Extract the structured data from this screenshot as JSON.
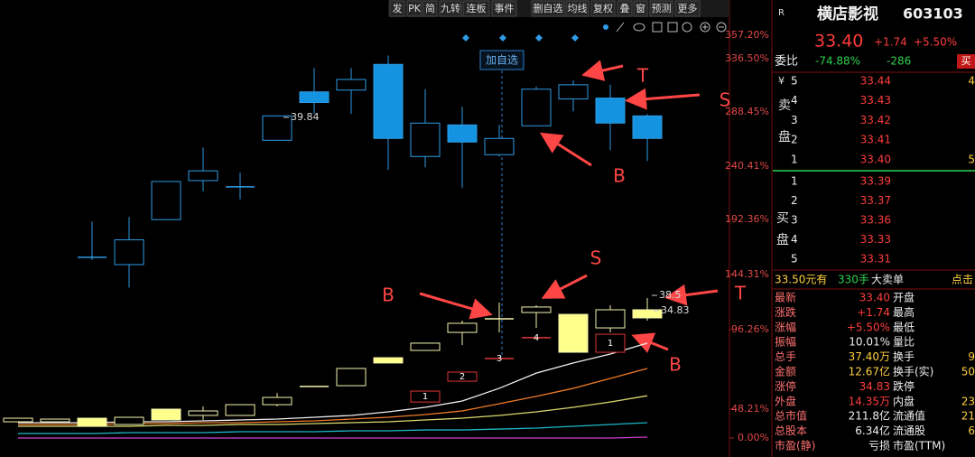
{
  "toolbar": {
    "buttons": [
      "发",
      "PK",
      "简",
      "九转",
      "连板",
      "事件",
      "删自选",
      "均线",
      "复权",
      "叠",
      "窗",
      "预测",
      "更多"
    ]
  },
  "chart": {
    "type": "candlestick",
    "yticks": [
      {
        "value": 0,
        "label": "0.00%"
      },
      {
        "value": 48.21,
        "label": "48.21%"
      },
      {
        "value": 96.26,
        "label": "96.26%"
      },
      {
        "value": 144.31,
        "label": "144.31%"
      },
      {
        "value": 192.36,
        "label": "192.36%"
      },
      {
        "value": 240.41,
        "label": "240.41%"
      },
      {
        "value": 288.45,
        "label": "288.45%"
      },
      {
        "value": 336.5,
        "label": "336.50%"
      },
      {
        "value": 357.2,
        "label": "357.20%"
      }
    ],
    "upper": {
      "color": "#2f9be6",
      "fill": "#1493e0",
      "open": [
        null,
        null,
        159.4,
        153,
        192.2,
        227.4,
        221.8,
        263.4,
        306.6,
        308.2,
        331.4,
        249,
        277,
        250.6,
        276.2,
        300.2,
        301,
        285
      ],
      "close": [
        null,
        null,
        159.4,
        174.6,
        226.6,
        236.2,
        221.8,
        285,
        297,
        317.8,
        265,
        278.6,
        261.8,
        265,
        309,
        313,
        278.6,
        265
      ],
      "high": [
        null,
        null,
        190.6,
        194.6,
        226.6,
        257,
        234.6,
        285,
        328.2,
        328.2,
        339.4,
        309,
        293,
        277,
        311.4,
        317,
        313,
        286.6
      ],
      "low": [
        null,
        null,
        157,
        133,
        192.2,
        217.8,
        210.6,
        263.4,
        286.6,
        286.6,
        237,
        239.4,
        221,
        249,
        276.2,
        289,
        254.6,
        245
      ]
    },
    "lower": {
      "color": "#f4f4b0",
      "fill": "#ffff8c",
      "open": [
        27.1,
        27.1,
        33.1,
        22.6,
        48.21,
        37.7,
        37.7,
        50.9,
        61.9,
        62.4,
        79.3,
        83.7,
        94.6,
        105.7,
        111.2,
        109.6,
        97.8,
        113.6
      ],
      "close": [
        33.1,
        31.6,
        19.6,
        34.6,
        30.1,
        45.2,
        50.9,
        55.3,
        61.9,
        72.8,
        76.1,
        88.1,
        101.8,
        105.7,
        116.0,
        82.6,
        113.6,
        106.5
      ],
      "high": [
        33.1,
        31.6,
        33.1,
        34.6,
        48.21,
        49.9,
        50.9,
        58.0,
        61.9,
        72.8,
        79.3,
        88.1,
        104.1,
        119.9,
        117.5,
        109.6,
        117.5,
        123.8
      ],
      "low": [
        27.1,
        27.1,
        19.6,
        22.6,
        30.1,
        30.1,
        37.7,
        49.9,
        61.9,
        62.4,
        76.1,
        83.7,
        87.0,
        94.6,
        97.8,
        82.6,
        94.6,
        104.1
      ]
    },
    "red": {
      "color": "#e03434",
      "open": [
        null,
        null,
        null,
        null,
        null,
        null,
        null,
        null,
        null,
        null,
        null,
        52.5,
        65.1,
        78.8,
        91.4,
        null,
        82.6,
        null
      ],
      "close": [
        null,
        null,
        null,
        null,
        null,
        null,
        null,
        null,
        null,
        null,
        null,
        59.1,
        70.6,
        78.8,
        91.4,
        null,
        93.5,
        null
      ],
      "labels": [
        null,
        null,
        null,
        null,
        null,
        null,
        null,
        null,
        null,
        null,
        null,
        "1",
        "2",
        "3",
        "4",
        null,
        "1",
        null
      ]
    },
    "lines": [
      {
        "color": "#f0f0f0",
        "values": [
          25.6,
          25.6,
          25.6,
          27.1,
          27.1,
          28.6,
          30.1,
          31.6,
          34.6,
          37.7,
          43.7,
          49.3,
          53.1,
          60.8,
          70.0,
          76.1,
          81.5,
          88.1
        ]
      },
      {
        "color": "#f07a28",
        "values": [
          22.6,
          22.6,
          22.6,
          24.1,
          24.1,
          25.6,
          25.6,
          27.1,
          28.6,
          31.6,
          34.6,
          39.2,
          45.2,
          51.5,
          55.9,
          60.8,
          66.8,
          72.8
        ]
      },
      {
        "color": "#d8d870",
        "values": [
          19.6,
          19.6,
          19.6,
          19.6,
          21.1,
          21.1,
          22.6,
          22.6,
          24.1,
          25.6,
          27.1,
          30.1,
          33.1,
          37.7,
          43.7,
          49.3,
          52.5,
          56.3
        ]
      },
      {
        "color": "#1cb8c8",
        "values": [
          7.5,
          7.5,
          7.5,
          9.0,
          9.0,
          9.0,
          10.5,
          10.5,
          10.5,
          12.0,
          12.0,
          13.5,
          13.5,
          15.0,
          16.6,
          19.6,
          22.6,
          25.6
        ]
      },
      {
        "color": "#d040d0",
        "values": [
          0,
          0,
          0,
          0,
          0,
          0,
          0,
          0,
          0,
          0,
          0,
          0,
          0,
          0,
          0,
          0,
          0,
          1.5
        ]
      }
    ],
    "price_labels": [
      "39.84",
      "38.5",
      "34.83"
    ],
    "crosshair_label": "加自选",
    "annotations": [
      "T",
      "S",
      "B",
      "B",
      "S",
      "T",
      "B"
    ]
  },
  "quote": {
    "flag": "R",
    "name": "横店影视",
    "code": "603103",
    "price": "33.40",
    "change": "+1.74",
    "change_pct": "+5.50%",
    "weibi_label": "委比",
    "weibi": "-74.88%",
    "weicha": "-286",
    "buy_button": "买"
  },
  "order_book": {
    "currency": "¥",
    "sell_label": [
      "卖",
      "盘"
    ],
    "buy_label": [
      "买",
      "盘"
    ],
    "sell": [
      {
        "level": "5",
        "price": "33.44",
        "extra": "4"
      },
      {
        "level": "4",
        "price": "33.43"
      },
      {
        "level": "3",
        "price": "33.42"
      },
      {
        "level": "2",
        "price": "33.41"
      },
      {
        "level": "1",
        "price": "33.40",
        "extra": "5"
      }
    ],
    "buy": [
      {
        "level": "1",
        "price": "33.39"
      },
      {
        "level": "2",
        "price": "33.37"
      },
      {
        "level": "3",
        "price": "33.36"
      },
      {
        "level": "4",
        "price": "33.33"
      },
      {
        "level": "5",
        "price": "33.31"
      }
    ]
  },
  "big_order": [
    "33.50元有",
    "330手",
    "大卖单",
    "点击"
  ],
  "stats": [
    [
      "最新",
      "33.40",
      "开盘"
    ],
    [
      "涨跌",
      "+1.74",
      "最高"
    ],
    [
      "涨幅",
      "+5.50%",
      "最低"
    ],
    [
      "振幅",
      "10.01%",
      "量比"
    ],
    [
      "总手",
      "37.40万",
      "换手",
      "9"
    ],
    [
      "金额",
      "12.67亿",
      "换手(实)",
      "50"
    ],
    [
      "涨停",
      "34.83",
      "跌停"
    ],
    [
      "外盘",
      "14.35万",
      "内盘",
      "23"
    ],
    [
      "总市值",
      "211.8亿",
      "流通值",
      "21"
    ],
    [
      "总股本",
      "6.34亿",
      "流通股",
      "6"
    ],
    [
      "市盈(静)",
      "亏损",
      "市盈(TTM)"
    ]
  ]
}
